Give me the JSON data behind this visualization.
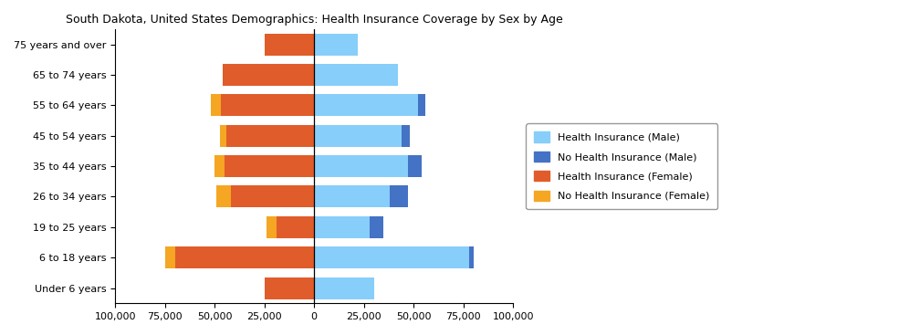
{
  "title": "South Dakota, United States Demographics: Health Insurance Coverage by Sex by Age",
  "age_groups": [
    "Under 6 years",
    "6 to 18 years",
    "19 to 25 years",
    "26 to 34 years",
    "35 to 44 years",
    "45 to 54 years",
    "55 to 64 years",
    "65 to 74 years",
    "75 years and over"
  ],
  "health_insurance_male": [
    30000,
    78000,
    28000,
    38000,
    47000,
    44000,
    52000,
    42000,
    22000
  ],
  "no_health_insurance_male": [
    0,
    2000,
    7000,
    9000,
    7000,
    4000,
    4000,
    0,
    0
  ],
  "health_insurance_female": [
    25000,
    70000,
    19000,
    42000,
    45000,
    44000,
    47000,
    46000,
    25000
  ],
  "no_health_insurance_female": [
    0,
    5000,
    5000,
    7000,
    5000,
    3500,
    5000,
    0,
    0
  ],
  "color_health_insurance_male": "#87CEFA",
  "color_no_health_insurance_male": "#4472C4",
  "color_health_insurance_female": "#E05C2A",
  "color_no_health_insurance_female": "#F5A623",
  "xlim": 100000,
  "xticks": [
    -100000,
    -75000,
    -50000,
    -25000,
    0,
    25000,
    50000,
    75000,
    100000
  ],
  "xticklabels": [
    "100,000",
    "75,000",
    "50,000",
    "25,000",
    "0",
    "25,000",
    "50,000",
    "75,000",
    "100,000"
  ]
}
